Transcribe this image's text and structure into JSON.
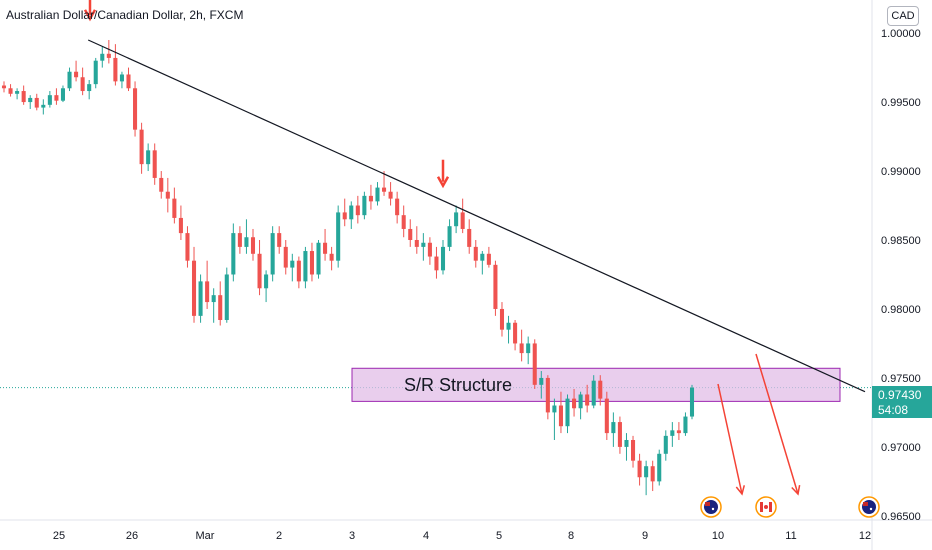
{
  "header": {
    "title": "Australian Dollar/Canadian Dollar, 2h, FXCM",
    "currency_button": "CAD"
  },
  "last_price": {
    "price": "0.97430",
    "countdown": "54:08"
  },
  "colors": {
    "up": "#26a69a",
    "down": "#ef5350",
    "trendline": "#131722",
    "zone_fill": "#e1bee7",
    "zone_border": "#9c27b0",
    "arrow": "#f44336"
  },
  "chart_data": {
    "type": "candlestick",
    "x_tick_labels": [
      "25",
      "26",
      "Mar",
      "2",
      "3",
      "4",
      "5",
      "8",
      "9",
      "10",
      "11",
      "12"
    ],
    "y_tick_labels": [
      "1.00000",
      "0.99500",
      "0.99000",
      "0.98500",
      "0.98000",
      "0.97500",
      "0.97000",
      "0.96500"
    ],
    "ylim": [
      0.9647,
      1.0024
    ],
    "annotations": {
      "zone_label": "S/R Structure",
      "zone_range": [
        0.9733,
        0.9757
      ],
      "trendline": [
        {
          "day": 25.4,
          "price": 0.9995
        },
        {
          "day": 12.0,
          "price": 0.974
        }
      ],
      "down_arrows_at_day": [
        25.4,
        4.2
      ],
      "projection_arrows_from_day": [
        10.3,
        10.9
      ],
      "event_icons": [
        "AUD event",
        "CAD event",
        "AUD event"
      ]
    },
    "candles": [
      [
        0.9962,
        0.9965,
        0.9957,
        0.996
      ],
      [
        0.996,
        0.9963,
        0.9954,
        0.9956
      ],
      [
        0.9956,
        0.996,
        0.9952,
        0.9958
      ],
      [
        0.9958,
        0.9962,
        0.9948,
        0.995
      ],
      [
        0.995,
        0.9955,
        0.9945,
        0.9953
      ],
      [
        0.9953,
        0.9956,
        0.9944,
        0.9946
      ],
      [
        0.9946,
        0.9952,
        0.9941,
        0.9948
      ],
      [
        0.9948,
        0.9958,
        0.9946,
        0.9955
      ],
      [
        0.9955,
        0.996,
        0.9948,
        0.9951
      ],
      [
        0.9951,
        0.9962,
        0.995,
        0.996
      ],
      [
        0.996,
        0.9975,
        0.9958,
        0.9972
      ],
      [
        0.9972,
        0.998,
        0.9965,
        0.9968
      ],
      [
        0.9968,
        0.9975,
        0.9955,
        0.9958
      ],
      [
        0.9958,
        0.9966,
        0.9952,
        0.9963
      ],
      [
        0.9963,
        0.9982,
        0.996,
        0.998
      ],
      [
        0.998,
        0.999,
        0.9975,
        0.9985
      ],
      [
        0.9985,
        0.9995,
        0.9978,
        0.9982
      ],
      [
        0.9982,
        0.9992,
        0.9962,
        0.9965
      ],
      [
        0.9965,
        0.9972,
        0.996,
        0.997
      ],
      [
        0.997,
        0.9975,
        0.9958,
        0.996
      ],
      [
        0.996,
        0.9965,
        0.9925,
        0.993
      ],
      [
        0.993,
        0.9935,
        0.9898,
        0.9905
      ],
      [
        0.9905,
        0.992,
        0.99,
        0.9915
      ],
      [
        0.9915,
        0.992,
        0.989,
        0.9895
      ],
      [
        0.9895,
        0.99,
        0.988,
        0.9885
      ],
      [
        0.9885,
        0.9895,
        0.987,
        0.988
      ],
      [
        0.988,
        0.9888,
        0.9862,
        0.9866
      ],
      [
        0.9866,
        0.9875,
        0.985,
        0.9855
      ],
      [
        0.9855,
        0.986,
        0.983,
        0.9835
      ],
      [
        0.9835,
        0.9845,
        0.979,
        0.9795
      ],
      [
        0.9795,
        0.9825,
        0.979,
        0.982
      ],
      [
        0.982,
        0.9835,
        0.98,
        0.9805
      ],
      [
        0.9805,
        0.9815,
        0.979,
        0.981
      ],
      [
        0.981,
        0.982,
        0.9788,
        0.9792
      ],
      [
        0.9792,
        0.983,
        0.979,
        0.9825
      ],
      [
        0.9825,
        0.9862,
        0.982,
        0.9855
      ],
      [
        0.9855,
        0.986,
        0.984,
        0.9845
      ],
      [
        0.9845,
        0.9865,
        0.984,
        0.9852
      ],
      [
        0.9852,
        0.9858,
        0.9835,
        0.984
      ],
      [
        0.984,
        0.985,
        0.981,
        0.9815
      ],
      [
        0.9815,
        0.9828,
        0.9805,
        0.9825
      ],
      [
        0.9825,
        0.986,
        0.982,
        0.9855
      ],
      [
        0.9855,
        0.986,
        0.984,
        0.9845
      ],
      [
        0.9845,
        0.985,
        0.9825,
        0.983
      ],
      [
        0.983,
        0.984,
        0.982,
        0.9835
      ],
      [
        0.9835,
        0.9838,
        0.9815,
        0.982
      ],
      [
        0.982,
        0.9845,
        0.9815,
        0.9842
      ],
      [
        0.9842,
        0.9848,
        0.982,
        0.9825
      ],
      [
        0.9825,
        0.985,
        0.9822,
        0.9848
      ],
      [
        0.9848,
        0.9858,
        0.9835,
        0.984
      ],
      [
        0.984,
        0.9845,
        0.9828,
        0.9835
      ],
      [
        0.9835,
        0.9875,
        0.983,
        0.987
      ],
      [
        0.987,
        0.988,
        0.986,
        0.9865
      ],
      [
        0.9865,
        0.9878,
        0.9858,
        0.9875
      ],
      [
        0.9875,
        0.9882,
        0.9862,
        0.9868
      ],
      [
        0.9868,
        0.9885,
        0.9865,
        0.9882
      ],
      [
        0.9882,
        0.989,
        0.9872,
        0.9878
      ],
      [
        0.9878,
        0.9892,
        0.9875,
        0.9888
      ],
      [
        0.9888,
        0.99,
        0.9882,
        0.9885
      ],
      [
        0.9885,
        0.9892,
        0.9875,
        0.988
      ],
      [
        0.988,
        0.9885,
        0.9862,
        0.9868
      ],
      [
        0.9868,
        0.9875,
        0.9852,
        0.9858
      ],
      [
        0.9858,
        0.9865,
        0.9845,
        0.985
      ],
      [
        0.985,
        0.986,
        0.984,
        0.9845
      ],
      [
        0.9845,
        0.9855,
        0.9835,
        0.9848
      ],
      [
        0.9848,
        0.9852,
        0.9832,
        0.9838
      ],
      [
        0.9838,
        0.9845,
        0.9822,
        0.9828
      ],
      [
        0.9828,
        0.985,
        0.9825,
        0.9845
      ],
      [
        0.9845,
        0.9865,
        0.9842,
        0.986
      ],
      [
        0.986,
        0.9875,
        0.9855,
        0.987
      ],
      [
        0.987,
        0.988,
        0.9855,
        0.9858
      ],
      [
        0.9858,
        0.9865,
        0.984,
        0.9845
      ],
      [
        0.9845,
        0.985,
        0.983,
        0.9835
      ],
      [
        0.9835,
        0.9842,
        0.9825,
        0.984
      ],
      [
        0.984,
        0.9845,
        0.983,
        0.9832
      ],
      [
        0.9832,
        0.9835,
        0.9795,
        0.98
      ],
      [
        0.98,
        0.9805,
        0.978,
        0.9785
      ],
      [
        0.9785,
        0.9795,
        0.9775,
        0.979
      ],
      [
        0.979,
        0.9792,
        0.977,
        0.9775
      ],
      [
        0.9775,
        0.9785,
        0.9762,
        0.9768
      ],
      [
        0.9768,
        0.978,
        0.976,
        0.9775
      ],
      [
        0.9775,
        0.9778,
        0.9742,
        0.9745
      ],
      [
        0.9745,
        0.9755,
        0.9735,
        0.975
      ],
      [
        0.975,
        0.9752,
        0.972,
        0.9725
      ],
      [
        0.9725,
        0.9735,
        0.9705,
        0.973
      ],
      [
        0.973,
        0.974,
        0.971,
        0.9715
      ],
      [
        0.9715,
        0.9738,
        0.971,
        0.9735
      ],
      [
        0.9735,
        0.9742,
        0.9722,
        0.9728
      ],
      [
        0.9728,
        0.974,
        0.972,
        0.9738
      ],
      [
        0.9738,
        0.9745,
        0.9725,
        0.973
      ],
      [
        0.973,
        0.9752,
        0.9728,
        0.9748
      ],
      [
        0.9748,
        0.9752,
        0.973,
        0.9735
      ],
      [
        0.9735,
        0.974,
        0.9705,
        0.971
      ],
      [
        0.971,
        0.9725,
        0.97,
        0.9718
      ],
      [
        0.9718,
        0.9722,
        0.9695,
        0.97
      ],
      [
        0.97,
        0.971,
        0.969,
        0.9705
      ],
      [
        0.9705,
        0.9708,
        0.9685,
        0.969
      ],
      [
        0.969,
        0.9695,
        0.9672,
        0.9678
      ],
      [
        0.9678,
        0.969,
        0.9665,
        0.9686
      ],
      [
        0.9686,
        0.969,
        0.9668,
        0.9675
      ],
      [
        0.9675,
        0.9698,
        0.9672,
        0.9695
      ],
      [
        0.9695,
        0.9712,
        0.969,
        0.9708
      ],
      [
        0.9708,
        0.9718,
        0.97,
        0.9712
      ],
      [
        0.9712,
        0.9718,
        0.9705,
        0.971
      ],
      [
        0.971,
        0.9725,
        0.9708,
        0.9722
      ],
      [
        0.9722,
        0.9745,
        0.972,
        0.9743
      ]
    ]
  }
}
